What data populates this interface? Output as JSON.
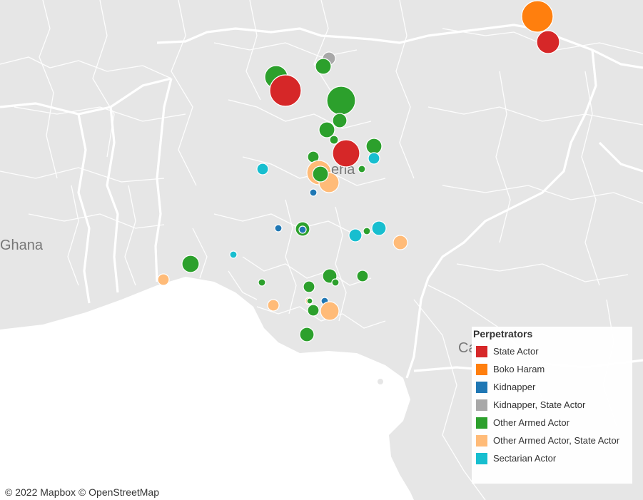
{
  "map": {
    "labels": {
      "ghana": "Ghana",
      "nigeria_fragment": "eria",
      "cameroon_fragment": "Ca"
    }
  },
  "legend": {
    "title": "Perpetrators",
    "items": [
      {
        "label": "State Actor",
        "color": "#d62728"
      },
      {
        "label": "Boko Haram",
        "color": "#ff7f0e"
      },
      {
        "label": "Kidnapper",
        "color": "#1f77b4"
      },
      {
        "label": "Kidnapper, State Actor",
        "color": "#a8a8a8"
      },
      {
        "label": "Other Armed Actor",
        "color": "#2ca02c"
      },
      {
        "label": "Other Armed Actor, State Actor",
        "color": "#ffbb78"
      },
      {
        "label": "Sectarian Actor",
        "color": "#17becf"
      }
    ]
  },
  "attribution": {
    "mapbox": "© 2022 Mapbox",
    "osm": "© OpenStreetMap"
  }
}
